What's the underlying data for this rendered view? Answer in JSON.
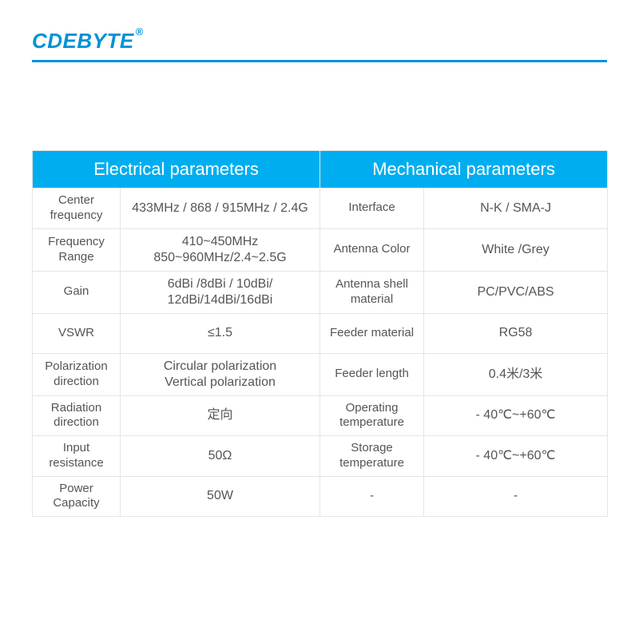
{
  "brand": {
    "name": "CDEBYTE",
    "registered": "®",
    "color": "#0092d6"
  },
  "underline_color": "#0092d6",
  "table": {
    "header_bg": "#00aeef",
    "header_fg": "#ffffff",
    "border_color": "#e5e5e5",
    "cell_fg": "#555555",
    "font_size_header": 22,
    "font_size_cell": 16,
    "font_size_label": 15,
    "columns": {
      "left_header": "Electrical parameters",
      "right_header": "Mechanical parameters"
    },
    "rows": [
      {
        "l_label": "Center\nfrequency",
        "l_value": "433MHz / 868 / 915MHz / 2.4G",
        "r_label": "Interface",
        "r_value": "N-K / SMA-J"
      },
      {
        "l_label": "Frequency\nRange",
        "l_value": "410~450MHz\n850~960MHz/2.4~2.5G",
        "r_label": "Antenna Color",
        "r_value": "White /Grey"
      },
      {
        "l_label": "Gain",
        "l_value": "6dBi /8dBi / 10dBi/\n12dBi/14dBi/16dBi",
        "r_label": "Antenna shell\nmaterial",
        "r_value": "PC/PVC/ABS"
      },
      {
        "l_label": "VSWR",
        "l_value": "≤1.5",
        "r_label": "Feeder material",
        "r_value": "RG58"
      },
      {
        "l_label": "Polarization\ndirection",
        "l_value": "Circular polarization\nVertical polarization",
        "r_label": "Feeder length",
        "r_value": "0.4米/3米"
      },
      {
        "l_label": "Radiation\ndirection",
        "l_value": "定向",
        "r_label": "Operating\ntemperature",
        "r_value": "- 40℃~+60℃"
      },
      {
        "l_label": "Input\nresistance",
        "l_value": "50Ω",
        "r_label": "Storage\ntemperature",
        "r_value": "- 40℃~+60℃"
      },
      {
        "l_label": "Power\nCapacity",
        "l_value": "50W",
        "r_label": "-",
        "r_value": "-"
      }
    ]
  }
}
